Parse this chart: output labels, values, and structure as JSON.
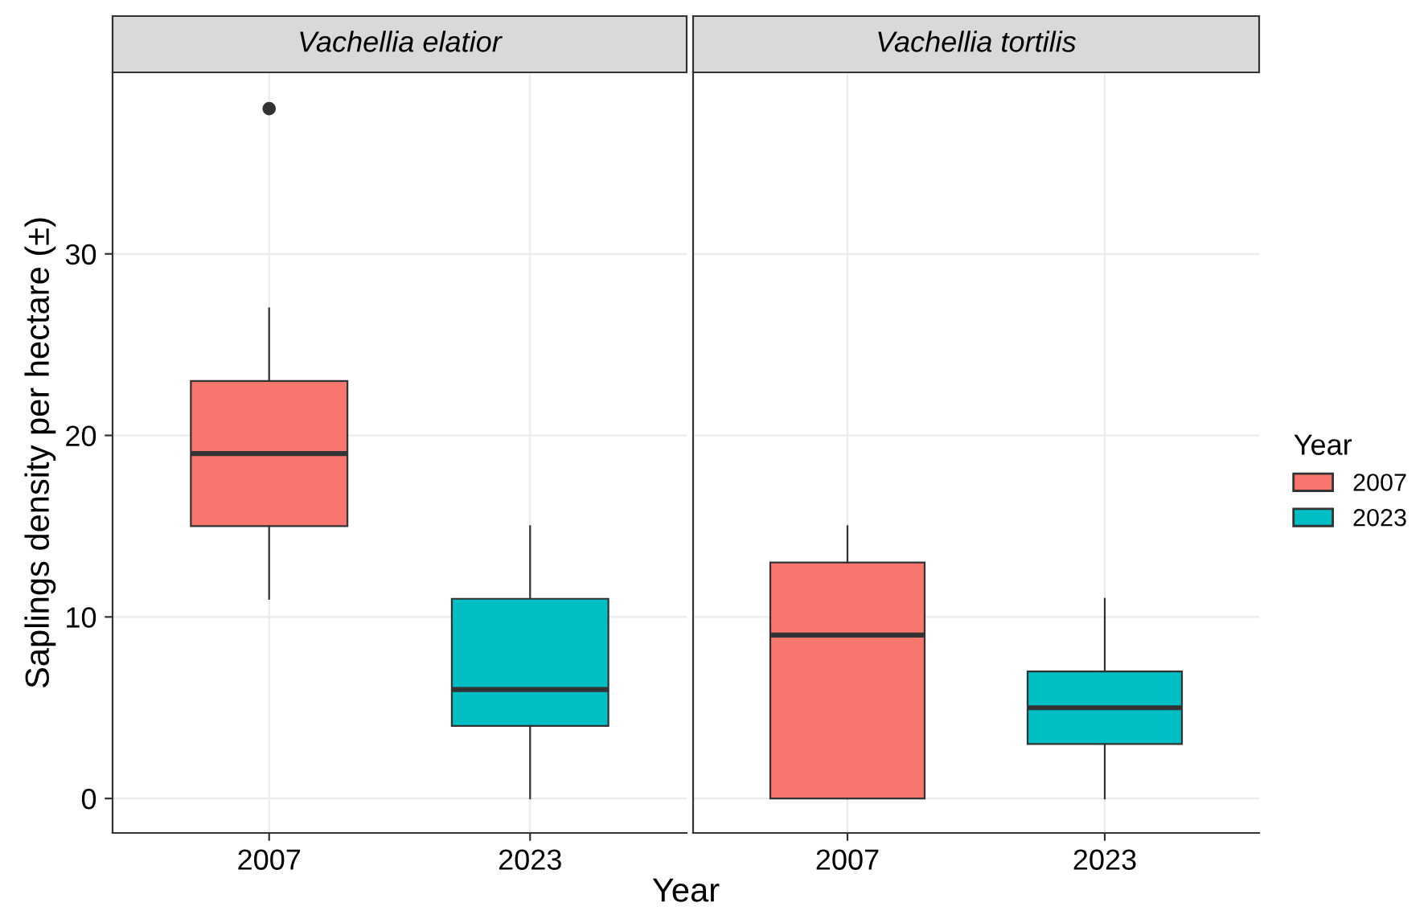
{
  "chart_data": [
    {
      "type": "box",
      "title": "Vachellia elatior",
      "xlabel": "Year",
      "ylabel": "Saplings density per hectare (±)",
      "categories": [
        "2007",
        "2023"
      ],
      "ylim": [
        -1.9,
        40
      ],
      "yticks": [
        0,
        10,
        20,
        30
      ],
      "grid": true,
      "legend": "right",
      "legend_title": "Year",
      "series": [
        {
          "name": "2007",
          "color": "#f8766d",
          "boxes": [
            {
              "low": 11,
              "q1": 15,
              "median": 19,
              "q3": 23,
              "high": 27,
              "outliers": [
                38
              ]
            },
            null
          ]
        },
        {
          "name": "2023",
          "color": "#00bfc4",
          "boxes": [
            null,
            {
              "low": 0,
              "q1": 4,
              "median": 6,
              "q3": 11,
              "high": 15
            }
          ]
        }
      ]
    },
    {
      "type": "box",
      "title": "Vachellia tortilis",
      "categories": [
        "2007",
        "2023"
      ],
      "ylim": [
        -1.9,
        40
      ],
      "yticks": [
        0,
        10,
        20,
        30
      ],
      "grid": true,
      "tick_labels": "x",
      "series": [
        {
          "color": "#f8766d",
          "boxes": [
            {
              "low": 0,
              "q1": 0,
              "median": 9,
              "q3": 13,
              "high": 15
            },
            null
          ]
        },
        {
          "color": "#00bfc4",
          "boxes": [
            null,
            {
              "low": 0,
              "q1": 3,
              "median": 5,
              "q3": 7,
              "high": 11
            }
          ]
        }
      ]
    }
  ]
}
